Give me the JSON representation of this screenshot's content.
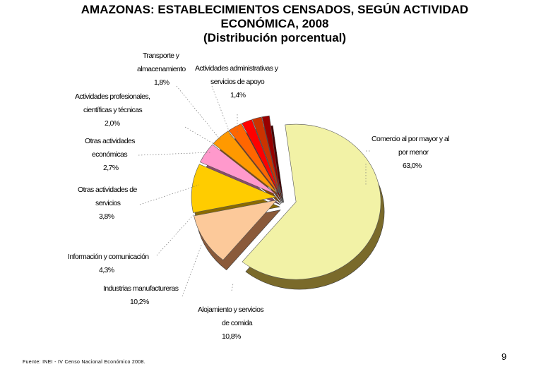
{
  "slide": {
    "title_lines": [
      "AMAZONAS: ESTABLECIMIENTOS CENSADOS, SEGÚN ACTIVIDAD",
      "ECONÓMICA, 2008",
      "(Distribución porcentual)"
    ],
    "source": "Fuente: INEI - IV Censo Nacional Económico 2008.",
    "page_number": "9"
  },
  "chart_data": {
    "type": "pie",
    "style": "3d-exploded",
    "title": "AMAZONAS: ESTABLECIMIENTOS CENSADOS, SEGÚN ACTIVIDAD ECONÓMICA, 2008 (Distribución porcentual)",
    "slices": [
      {
        "label_lines": [
          "Comercio al por mayor y al",
          "por menor"
        ],
        "value_text": "63,0%",
        "value": 63.0,
        "color": "#f2f2a6",
        "side_color": "#7a6a2a"
      },
      {
        "label_lines": [
          "Alojamiento y servicios",
          "de comida"
        ],
        "value_text": "10,8%",
        "value": 10.8,
        "color": "#fcc99a",
        "side_color": "#8a5a3a"
      },
      {
        "label_lines": [
          "Industrias manufactureras"
        ],
        "value_text": "10,2%",
        "value": 10.2,
        "color": "#ffcc00",
        "side_color": "#8a6a00"
      },
      {
        "label_lines": [
          "Información y comunicación"
        ],
        "value_text": "4,3%",
        "value": 4.3,
        "color": "#ff99cc",
        "side_color": "#8a4a6a"
      },
      {
        "label_lines": [
          "Otras actividades de",
          "servicios"
        ],
        "value_text": "3,8%",
        "value": 3.8,
        "color": "#ff9900",
        "side_color": "#8a4a00"
      },
      {
        "label_lines": [
          "Otras actividades",
          "económicas"
        ],
        "value_text": "2,7%",
        "value": 2.7,
        "color": "#ff6600",
        "side_color": "#8a3000"
      },
      {
        "label_lines": [
          "Actividades profesionales,",
          "científicas y técnicas"
        ],
        "value_text": "2,0%",
        "value": 2.0,
        "color": "#ff0000",
        "side_color": "#7a0000"
      },
      {
        "label_lines": [
          "Transporte y",
          "almacenamiento"
        ],
        "value_text": "1,8%",
        "value": 1.8,
        "color": "#cc3300",
        "side_color": "#6a1a00"
      },
      {
        "label_lines": [
          "Actividades administrativas y",
          "servicios de apoyo"
        ],
        "value_text": "1,4%",
        "value": 1.4,
        "color": "#990000",
        "side_color": "#4a0000"
      }
    ]
  }
}
